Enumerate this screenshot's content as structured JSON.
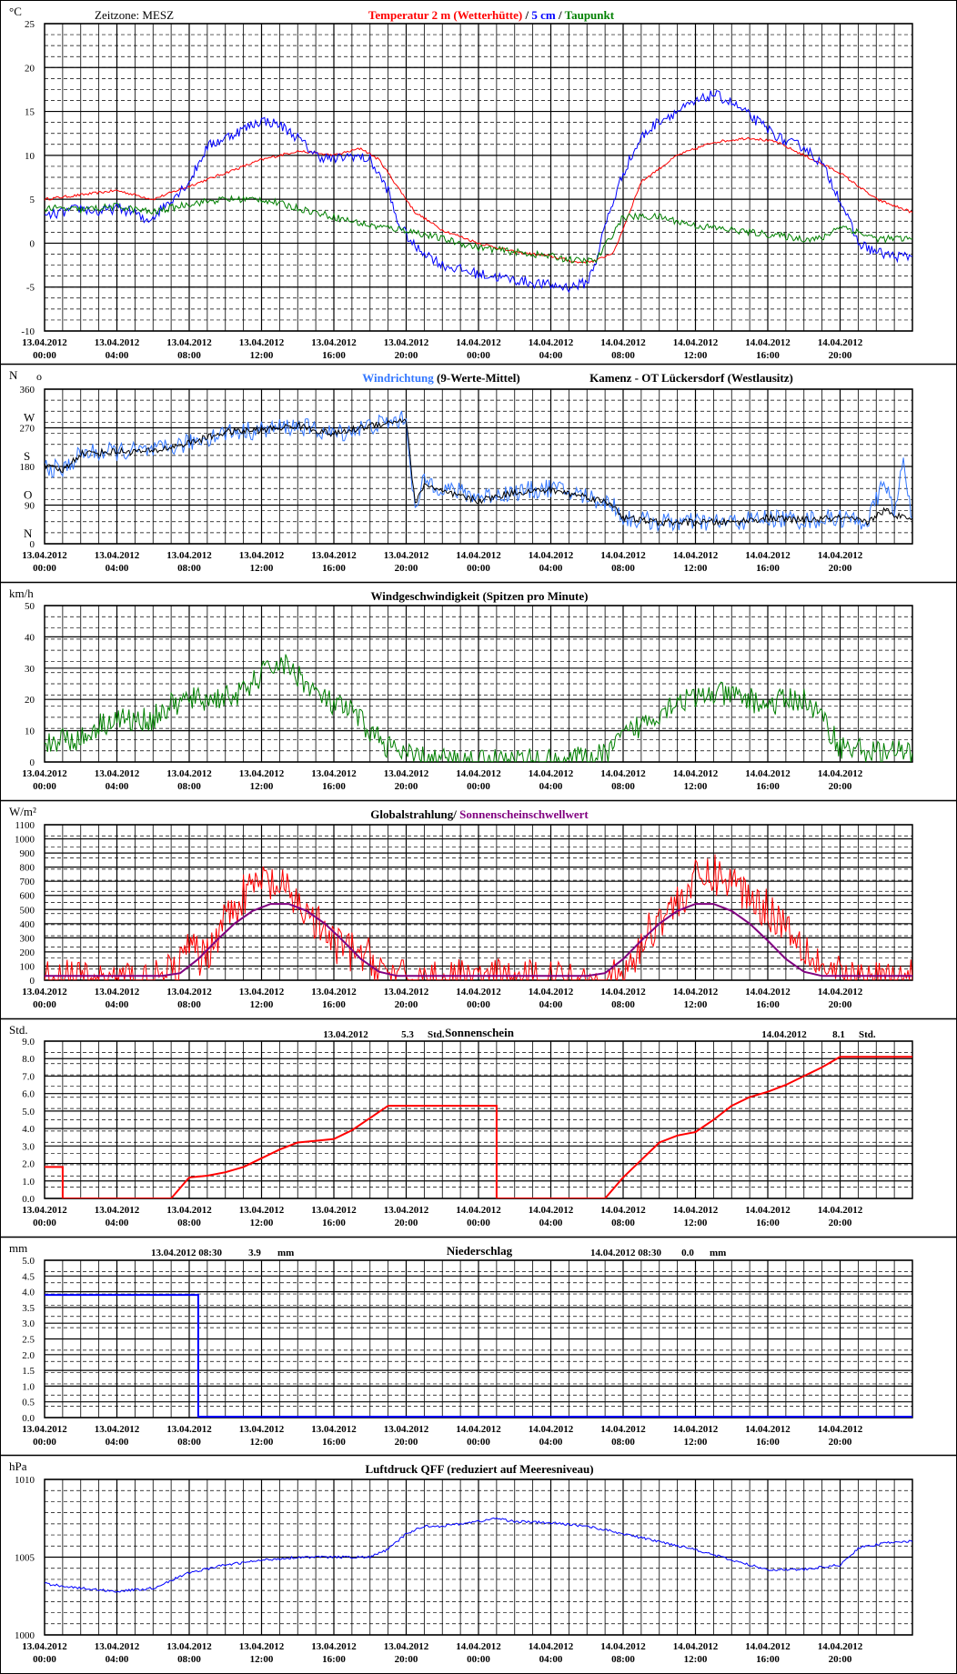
{
  "xaxis": {
    "range_hours": [
      0,
      48
    ],
    "tick_step_hours": 4,
    "minor_step_hours": 1,
    "labels": [
      [
        "13.04.2012",
        "00:00"
      ],
      [
        "13.04.2012",
        "04:00"
      ],
      [
        "13.04.2012",
        "08:00"
      ],
      [
        "13.04.2012",
        "12:00"
      ],
      [
        "13.04.2012",
        "16:00"
      ],
      [
        "13.04.2012",
        "20:00"
      ],
      [
        "14.04.2012",
        "00:00"
      ],
      [
        "14.04.2012",
        "04:00"
      ],
      [
        "14.04.2012",
        "08:00"
      ],
      [
        "14.04.2012",
        "12:00"
      ],
      [
        "14.04.2012",
        "16:00"
      ],
      [
        "14.04.2012",
        "20:00"
      ]
    ]
  },
  "colors": {
    "red": "#ff0000",
    "blue": "#0000ff",
    "green": "#008000",
    "lightblue": "#3377ff",
    "purple": "#800080",
    "black": "#000000",
    "grid": "#000000",
    "divider": "#000000"
  },
  "chart_data": [
    {
      "id": "temperature",
      "type": "line",
      "unit": "°C",
      "header_left": "Zeitzone: MESZ",
      "title_parts": [
        {
          "text": "Temperatur 2 m (Wetterhütte)",
          "color": "#ff0000"
        },
        {
          "text": " / ",
          "color": "#000000"
        },
        {
          "text": "5 cm",
          "color": "#0000ff"
        },
        {
          "text": " / ",
          "color": "#000000"
        },
        {
          "text": "Taupunkt",
          "color": "#008000"
        }
      ],
      "ylim": [
        -10,
        25
      ],
      "yticks": [
        -10,
        -5,
        0,
        5,
        10,
        15,
        20,
        25
      ],
      "ytick_labels": [
        "-10",
        "-5",
        "0",
        "5",
        "10",
        "15",
        "20",
        "25"
      ],
      "series": [
        {
          "name": "Temperatur 2 m (Wetterhütte)",
          "color": "#ff0000",
          "noise": 0.15,
          "x": [
            0,
            2,
            4,
            6,
            8,
            10,
            12,
            14,
            16,
            17.5,
            18.5,
            19.5,
            20.5,
            22,
            24,
            26,
            28,
            29.5,
            30.5,
            31.5,
            33,
            35,
            37,
            39,
            40.5,
            42,
            44,
            46,
            48
          ],
          "y": [
            5,
            5.5,
            6,
            5,
            6.5,
            8,
            9.5,
            10.5,
            10,
            10.8,
            9.5,
            6.5,
            3.5,
            1.5,
            0,
            -1,
            -1.5,
            -2.2,
            -2,
            -1,
            7,
            10,
            11.5,
            12,
            11.5,
            10,
            8,
            5,
            3.5
          ]
        },
        {
          "name": "5 cm",
          "color": "#0000ff",
          "noise": 0.6,
          "x": [
            0,
            1,
            2,
            3,
            4,
            5,
            5.5,
            6,
            7,
            8,
            9,
            10,
            11,
            12,
            13,
            14,
            15,
            16,
            17,
            18,
            19,
            19.5,
            20,
            20.5,
            21,
            22,
            24,
            26,
            28,
            29,
            30,
            30.5,
            31,
            32,
            33,
            34,
            35,
            36,
            37,
            38,
            39,
            40,
            41,
            42,
            43,
            44,
            45,
            46,
            47,
            48
          ],
          "y": [
            3,
            3.5,
            4,
            3.5,
            4,
            3.5,
            2.5,
            3,
            5,
            7,
            11,
            12,
            13,
            14,
            13.5,
            12,
            10,
            9.5,
            10,
            9.5,
            6,
            2.5,
            1,
            -0.5,
            -1,
            -2.5,
            -3.5,
            -4.2,
            -4.8,
            -5,
            -4.5,
            -2,
            2,
            8,
            12,
            14,
            15,
            16,
            17,
            16,
            14.5,
            13,
            11.5,
            11,
            9,
            5,
            0,
            -1,
            -1.5,
            -1.5
          ]
        },
        {
          "name": "Taupunkt",
          "color": "#008000",
          "noise": 0.4,
          "x": [
            0,
            2,
            4,
            6,
            8,
            10,
            12,
            14,
            16,
            18,
            20,
            22,
            24,
            26,
            28,
            29.5,
            30.5,
            32,
            34,
            36,
            38,
            40,
            42,
            43,
            44,
            46,
            48
          ],
          "y": [
            4,
            3.8,
            4.2,
            3.5,
            4.5,
            5,
            5,
            4,
            3,
            2,
            1.5,
            0.5,
            -0.5,
            -1,
            -1.5,
            -2,
            -2,
            3,
            3,
            2,
            1.5,
            1,
            0.5,
            0.5,
            2,
            0.5,
            0.5
          ]
        }
      ]
    },
    {
      "id": "wind-direction",
      "type": "line",
      "unit": "N",
      "title_parts": [
        {
          "text": "Windrichtung",
          "color": "#3377ff"
        },
        {
          "text": " (9-Werte-Mittel)",
          "color": "#000000"
        }
      ],
      "station": "Kamenz - OT Lückersdorf (Westlausitz)",
      "ylim": [
        0,
        360
      ],
      "yticks": [
        0,
        90,
        180,
        270,
        360
      ],
      "ytick_labels": [
        "0",
        "90",
        "180",
        "270",
        "360"
      ],
      "compass_labels": [
        {
          "v": 0,
          "t": "N"
        },
        {
          "v": 90,
          "t": "O"
        },
        {
          "v": 180,
          "t": "S"
        },
        {
          "v": 270,
          "t": "W"
        }
      ],
      "series": [
        {
          "name": "Windrichtung",
          "color": "#3377ff",
          "noise": 22,
          "x": [
            0,
            1,
            2,
            4,
            6,
            8,
            10,
            12,
            14,
            16,
            18,
            20,
            20.5,
            21,
            22,
            24,
            26,
            28,
            30,
            31.5,
            32,
            33,
            34,
            36,
            38,
            40,
            42,
            44,
            45.5,
            46.5,
            47,
            47.5,
            48
          ],
          "y": [
            180,
            170,
            210,
            215,
            215,
            235,
            260,
            265,
            275,
            255,
            275,
            290,
            70,
            150,
            130,
            110,
            120,
            130,
            110,
            90,
            60,
            55,
            50,
            50,
            50,
            60,
            55,
            60,
            50,
            150,
            60,
            200,
            60
          ]
        },
        {
          "name": "9-Werte-Mittel",
          "color": "#000000",
          "noise": 8,
          "x": [
            0,
            1,
            2,
            4,
            6,
            8,
            10,
            12,
            14,
            16,
            18,
            20,
            20.5,
            21,
            22,
            24,
            26,
            28,
            30,
            31.5,
            32,
            33,
            34,
            36,
            38,
            40,
            42,
            44,
            45.5,
            46.5,
            47,
            47.5,
            48
          ],
          "y": [
            180,
            170,
            210,
            215,
            215,
            235,
            260,
            265,
            275,
            255,
            275,
            290,
            90,
            140,
            120,
            100,
            120,
            125,
            110,
            90,
            60,
            55,
            50,
            50,
            50,
            60,
            55,
            60,
            50,
            80,
            60,
            70,
            60
          ]
        }
      ]
    },
    {
      "id": "wind-speed",
      "type": "line",
      "unit": "km/h",
      "title_parts": [
        {
          "text": "Windgeschwindigkeit (Spitzen pro Minute)",
          "color": "#000000"
        }
      ],
      "ylim": [
        0,
        50
      ],
      "yticks": [
        0,
        10,
        20,
        30,
        40,
        50
      ],
      "ytick_labels": [
        "0",
        "10",
        "20",
        "30",
        "40",
        "50"
      ],
      "series": [
        {
          "name": "Windgeschwindigkeit",
          "color": "#008000",
          "noise": 4,
          "floor": 0,
          "x": [
            0,
            1,
            2,
            3,
            4,
            5,
            6,
            7,
            8,
            9,
            10,
            11,
            12,
            13,
            14,
            15,
            16,
            17,
            18,
            19,
            20,
            21,
            22,
            24,
            26,
            28,
            30,
            31,
            32,
            33,
            34,
            35,
            36,
            37,
            38,
            39,
            40,
            41,
            42,
            43,
            44,
            45,
            46,
            47,
            48
          ],
          "y": [
            5,
            8,
            7,
            12,
            14,
            13,
            14,
            18,
            20,
            20,
            21,
            22,
            28,
            32,
            28,
            22,
            18,
            16,
            10,
            5,
            2,
            1,
            0.5,
            0.5,
            0.5,
            0.5,
            1,
            2,
            8,
            12,
            16,
            20,
            20,
            22,
            21,
            20,
            18,
            20,
            20,
            14,
            5,
            4,
            3,
            3,
            3
          ]
        }
      ]
    },
    {
      "id": "global-radiation",
      "type": "line",
      "unit": "W/m²",
      "title_parts": [
        {
          "text": "Globalstrahlung/ ",
          "color": "#000000"
        },
        {
          "text": "Sonnenscheinschwellwert",
          "color": "#800080"
        }
      ],
      "ylim": [
        0,
        1100
      ],
      "yticks": [
        0,
        100,
        200,
        300,
        400,
        500,
        600,
        700,
        800,
        900,
        1000,
        1100
      ],
      "ytick_labels": [
        "0",
        "100",
        "200",
        "300",
        "400",
        "500",
        "600",
        "700",
        "800",
        "900",
        "1000",
        "1100"
      ],
      "series": [
        {
          "name": "Globalstrahlung",
          "color": "#ff0000",
          "noise": 150,
          "floor": 0,
          "x": [
            0,
            6.5,
            7.5,
            8,
            8.5,
            9,
            10,
            11,
            12,
            13,
            14,
            15,
            16,
            17,
            18,
            19,
            19.5,
            20,
            32,
            33,
            34,
            35,
            36,
            37,
            38,
            39,
            40,
            41,
            42,
            43,
            44,
            44.5,
            48
          ],
          "y": [
            0,
            0,
            100,
            250,
            150,
            200,
            450,
            600,
            700,
            650,
            550,
            400,
            250,
            200,
            150,
            50,
            0,
            0,
            0,
            250,
            450,
            550,
            700,
            750,
            700,
            600,
            500,
            400,
            250,
            100,
            20,
            0,
            0
          ]
        },
        {
          "name": "Sonnenscheinschwellwert",
          "color": "#800080",
          "noise": 0,
          "x": [
            0,
            6.5,
            7.5,
            8.5,
            9.5,
            10.5,
            11.5,
            12.5,
            13.5,
            14.5,
            15.5,
            16.5,
            17.5,
            18.5,
            19.5,
            20,
            30,
            31,
            32,
            33,
            34,
            35,
            36,
            37,
            38,
            39,
            40,
            41,
            42,
            43,
            44,
            44.5,
            48
          ],
          "y": [
            30,
            30,
            50,
            150,
            280,
            400,
            490,
            540,
            540,
            490,
            400,
            280,
            150,
            60,
            30,
            30,
            30,
            50,
            150,
            280,
            400,
            490,
            540,
            540,
            490,
            400,
            280,
            150,
            60,
            30,
            30,
            30,
            30
          ]
        }
      ]
    },
    {
      "id": "sunshine",
      "type": "line",
      "unit": "Std.",
      "title_parts": [
        {
          "text": "Sonnenschein",
          "color": "#000000"
        }
      ],
      "annotations": [
        {
          "date": "13.04.2012",
          "value": "5.3",
          "unit": "Std."
        },
        {
          "date": "14.04.2012",
          "value": "8.1",
          "unit": "Std."
        }
      ],
      "ylim": [
        0,
        9
      ],
      "yticks": [
        0,
        1,
        2,
        3,
        4,
        5,
        6,
        7,
        8,
        9
      ],
      "ytick_labels": [
        "0.0",
        "1.0",
        "2.0",
        "3.0",
        "4.0",
        "5.0",
        "6.0",
        "7.0",
        "8.0",
        "9.0"
      ],
      "series": [
        {
          "name": "Sonnenschein",
          "color": "#ff0000",
          "noise": 0,
          "x": [
            0,
            1,
            1,
            7,
            8,
            9,
            10,
            11,
            12,
            13,
            14,
            15,
            16,
            17,
            18,
            19,
            20,
            24,
            25,
            25,
            31,
            32,
            33,
            34,
            35,
            36,
            37,
            38,
            39,
            40,
            41,
            42,
            43,
            44,
            48
          ],
          "y": [
            1.8,
            1.8,
            0,
            0,
            1.2,
            1.3,
            1.5,
            1.8,
            2.3,
            2.8,
            3.2,
            3.3,
            3.4,
            3.9,
            4.6,
            5.3,
            5.3,
            5.3,
            5.3,
            0,
            0,
            1.2,
            2.2,
            3.2,
            3.6,
            3.8,
            4.5,
            5.3,
            5.8,
            6.1,
            6.5,
            7.0,
            7.5,
            8.1,
            8.1
          ]
        }
      ]
    },
    {
      "id": "precipitation",
      "type": "line",
      "unit": "mm",
      "title_parts": [
        {
          "text": "Niederschlag",
          "color": "#000000"
        }
      ],
      "annotations": [
        {
          "date": "13.04.2012 08:30",
          "value": "3.9",
          "unit": "mm"
        },
        {
          "date": "14.04.2012 08:30",
          "value": "0.0",
          "unit": "mm"
        }
      ],
      "ylim": [
        0,
        5
      ],
      "yticks": [
        0,
        0.5,
        1,
        1.5,
        2,
        2.5,
        3,
        3.5,
        4,
        4.5,
        5
      ],
      "ytick_labels": [
        "0.0",
        "0.5",
        "1.0",
        "1.5",
        "2.0",
        "2.5",
        "3.0",
        "3.5",
        "4.0",
        "4.5",
        "5.0"
      ],
      "series": [
        {
          "name": "Niederschlag",
          "color": "#0000ff",
          "noise": 0,
          "x": [
            0,
            8.5,
            8.5,
            48
          ],
          "y": [
            3.9,
            3.9,
            0.03,
            0.03
          ]
        }
      ]
    },
    {
      "id": "pressure",
      "type": "line",
      "unit": "hPa",
      "title_parts": [
        {
          "text": "Luftdruck QFF (reduziert auf Meeresniveau)",
          "color": "#000000"
        }
      ],
      "ylim": [
        1000,
        1010
      ],
      "yticks": [
        1000,
        1005,
        1010
      ],
      "ytick_labels": [
        "1000",
        "1005",
        "1010"
      ],
      "series": [
        {
          "name": "Luftdruck QFF",
          "color": "#0000ff",
          "noise": 0.08,
          "x": [
            0,
            2,
            4,
            6,
            7,
            8,
            10,
            12,
            14,
            16,
            18,
            19,
            20,
            21,
            22,
            24,
            25,
            26,
            28,
            30,
            32,
            34,
            36,
            38,
            40,
            42,
            44,
            44.5,
            45,
            46,
            47,
            48
          ],
          "y": [
            1003.3,
            1003.0,
            1002.8,
            1003.0,
            1003.5,
            1004.0,
            1004.5,
            1004.8,
            1005.0,
            1005.0,
            1005.0,
            1005.5,
            1006.5,
            1007.0,
            1007.0,
            1007.3,
            1007.5,
            1007.3,
            1007.2,
            1007.0,
            1006.5,
            1006.0,
            1005.5,
            1004.8,
            1004.2,
            1004.2,
            1004.5,
            1005.0,
            1005.6,
            1005.8,
            1006.0,
            1006.0
          ]
        }
      ]
    }
  ]
}
